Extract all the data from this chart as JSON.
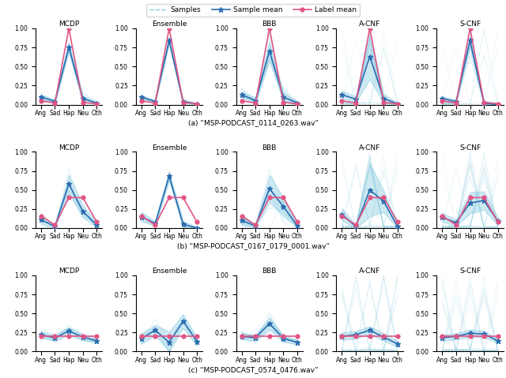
{
  "categories": [
    "Ang",
    "Sad",
    "Hap",
    "Neu",
    "Oth"
  ],
  "row_labels": [
    "(a) “MSP-PODCAST_0114_0263.wav”",
    "(b) “MSP-PODCAST_0167_0179_0001.wav”",
    "(c) “MSP-PODCAST_0574_0476.wav”"
  ],
  "col_titles": [
    "MCDP",
    "Ensemble",
    "BBB",
    "A-CNF",
    "S-CNF"
  ],
  "sample_color": "#82C9E0",
  "sample_mean_color": "#2B6CB0",
  "label_mean_color": "#E05585",
  "rows": [
    {
      "sample_means": [
        [
          0.1,
          0.04,
          0.75,
          0.08,
          0.02
        ],
        [
          0.1,
          0.04,
          0.84,
          0.04,
          0.01
        ],
        [
          0.13,
          0.05,
          0.7,
          0.1,
          0.02
        ],
        [
          0.13,
          0.07,
          0.63,
          0.08,
          0.01
        ],
        [
          0.08,
          0.04,
          0.84,
          0.02,
          0.0
        ]
      ],
      "label_means": [
        [
          0.05,
          0.02,
          1.0,
          0.03,
          0.01
        ],
        [
          0.05,
          0.02,
          1.0,
          0.03,
          0.01
        ],
        [
          0.05,
          0.02,
          1.0,
          0.03,
          0.01
        ],
        [
          0.05,
          0.02,
          1.0,
          0.03,
          0.01
        ],
        [
          0.05,
          0.02,
          1.0,
          0.03,
          0.01
        ]
      ],
      "sample_stds": [
        [
          0.03,
          0.02,
          0.06,
          0.04,
          0.01
        ],
        [
          0.02,
          0.02,
          0.04,
          0.02,
          0.01
        ],
        [
          0.04,
          0.03,
          0.12,
          0.06,
          0.02
        ],
        [
          0.05,
          0.04,
          0.3,
          0.06,
          0.01
        ],
        [
          0.03,
          0.02,
          0.06,
          0.02,
          0.01
        ]
      ],
      "n_samples": [
        8,
        5,
        12,
        25,
        35
      ],
      "acnf_spike": true,
      "scnf_spike": true
    },
    {
      "sample_means": [
        [
          0.11,
          0.02,
          0.58,
          0.22,
          0.04
        ],
        [
          0.15,
          0.06,
          0.68,
          0.05,
          0.0
        ],
        [
          0.1,
          0.03,
          0.52,
          0.28,
          0.03
        ],
        [
          0.18,
          0.02,
          0.5,
          0.35,
          0.02
        ],
        [
          0.14,
          0.07,
          0.33,
          0.36,
          0.09
        ]
      ],
      "label_means": [
        [
          0.16,
          0.04,
          0.4,
          0.4,
          0.08
        ],
        [
          0.16,
          0.04,
          0.4,
          0.4,
          0.08
        ],
        [
          0.16,
          0.04,
          0.4,
          0.4,
          0.08
        ],
        [
          0.16,
          0.04,
          0.4,
          0.4,
          0.08
        ],
        [
          0.16,
          0.04,
          0.4,
          0.4,
          0.08
        ]
      ],
      "sample_stds": [
        [
          0.06,
          0.02,
          0.12,
          0.08,
          0.03
        ],
        [
          0.06,
          0.03,
          0.06,
          0.04,
          0.01
        ],
        [
          0.06,
          0.02,
          0.18,
          0.12,
          0.02
        ],
        [
          0.08,
          0.02,
          0.35,
          0.14,
          0.02
        ],
        [
          0.06,
          0.04,
          0.14,
          0.12,
          0.05
        ]
      ],
      "n_samples": [
        8,
        5,
        12,
        25,
        35
      ],
      "acnf_spike": true,
      "scnf_spike": true
    },
    {
      "sample_means": [
        [
          0.22,
          0.18,
          0.27,
          0.19,
          0.14
        ],
        [
          0.17,
          0.28,
          0.12,
          0.4,
          0.13
        ],
        [
          0.2,
          0.18,
          0.37,
          0.17,
          0.12
        ],
        [
          0.2,
          0.22,
          0.28,
          0.19,
          0.1
        ],
        [
          0.18,
          0.2,
          0.24,
          0.23,
          0.14
        ]
      ],
      "label_means": [
        [
          0.2,
          0.2,
          0.2,
          0.2,
          0.2
        ],
        [
          0.2,
          0.2,
          0.2,
          0.2,
          0.2
        ],
        [
          0.2,
          0.2,
          0.2,
          0.2,
          0.2
        ],
        [
          0.2,
          0.2,
          0.2,
          0.2,
          0.2
        ],
        [
          0.2,
          0.2,
          0.2,
          0.2,
          0.2
        ]
      ],
      "sample_stds": [
        [
          0.04,
          0.04,
          0.05,
          0.04,
          0.03
        ],
        [
          0.07,
          0.07,
          0.14,
          0.09,
          0.05
        ],
        [
          0.04,
          0.04,
          0.08,
          0.04,
          0.03
        ],
        [
          0.05,
          0.05,
          0.05,
          0.05,
          0.04
        ],
        [
          0.04,
          0.04,
          0.05,
          0.04,
          0.03
        ]
      ],
      "n_samples": [
        8,
        5,
        12,
        25,
        35
      ],
      "acnf_spike": true,
      "scnf_spike": true
    }
  ]
}
